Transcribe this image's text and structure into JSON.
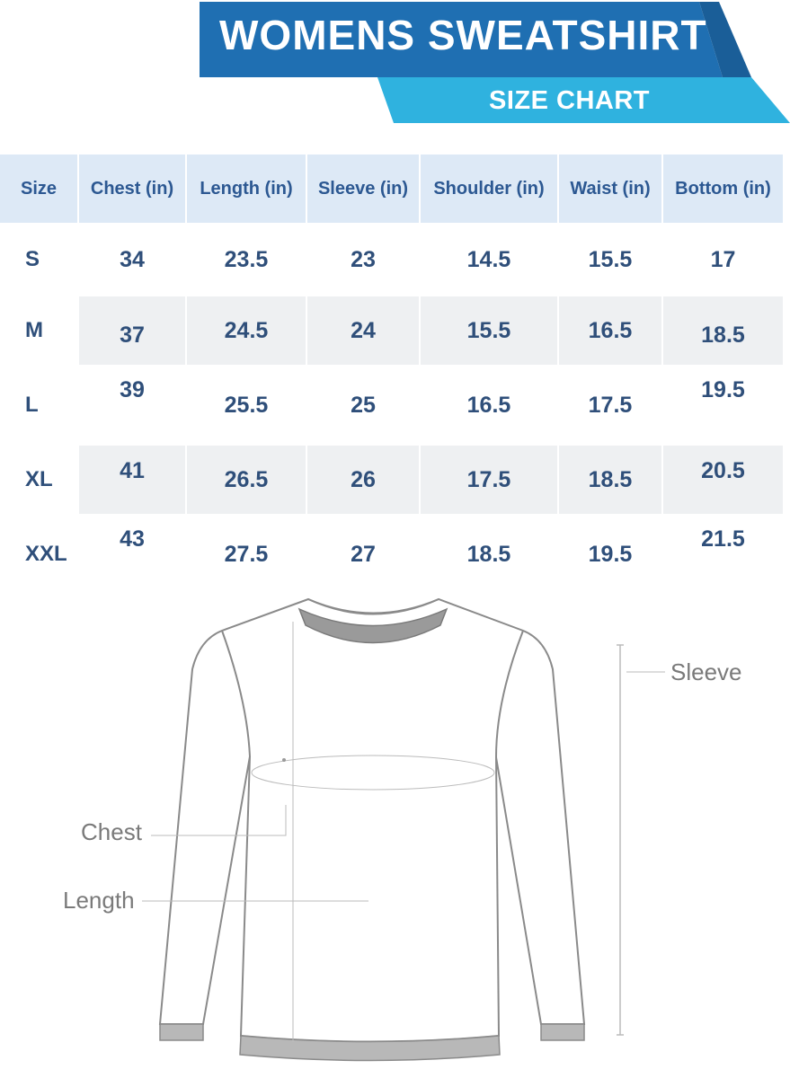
{
  "header": {
    "title": "WOMENS  SWEATSHIRT",
    "subtitle": "SIZE CHART",
    "colors": {
      "dark_blue": "#1f6fb2",
      "light_blue": "#2fb2df"
    }
  },
  "table": {
    "headers": [
      "Size",
      "Chest (in)",
      "Length (in)",
      "Sleeve (in)",
      "Shoulder (in)",
      "Waist (in)",
      "Bottom (in)"
    ],
    "rows": [
      [
        "S",
        "34",
        "23.5",
        "23",
        "14.5",
        "15.5",
        "17"
      ],
      [
        "M",
        "37",
        "24.5",
        "24",
        "15.5",
        "16.5",
        "18.5"
      ],
      [
        "L",
        "39",
        "25.5",
        "25",
        "16.5",
        "17.5",
        "19.5"
      ],
      [
        "XL",
        "41",
        "26.5",
        "26",
        "17.5",
        "18.5",
        "20.5"
      ],
      [
        "XXL",
        "43",
        "27.5",
        "27",
        "18.5",
        "19.5",
        "21.5"
      ]
    ]
  },
  "diagram": {
    "labels": {
      "sleeve": "Sleeve",
      "chest": "Chest",
      "length": "Length"
    },
    "icon": "sweatshirt-outline"
  }
}
